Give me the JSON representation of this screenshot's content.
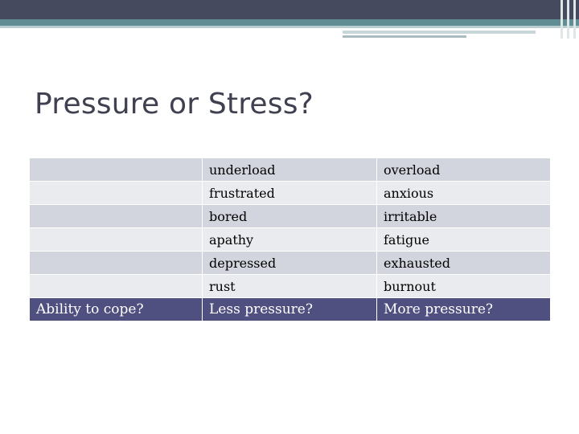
{
  "slide": {
    "title": "Pressure or Stress?"
  },
  "table": {
    "rows": [
      {
        "label": "",
        "low": "underload",
        "high": "overload"
      },
      {
        "label": "",
        "low": "frustrated",
        "high": "anxious"
      },
      {
        "label": "",
        "low": "bored",
        "high": "irritable"
      },
      {
        "label": "",
        "low": "apathy",
        "high": "fatigue"
      },
      {
        "label": "",
        "low": "depressed",
        "high": "exhausted"
      },
      {
        "label": "",
        "low": "rust",
        "high": "burnout"
      }
    ],
    "footer": {
      "label": "Ability to cope?",
      "low": "Less pressure?",
      "high": "More pressure?"
    }
  },
  "colors": {
    "banner_dark": "#464a5e",
    "banner_teal": "#5f8d93",
    "row_dark": "#d3d5de",
    "row_light": "#eaebef",
    "footer_bg": "#505080",
    "title_text": "#3f4150"
  }
}
